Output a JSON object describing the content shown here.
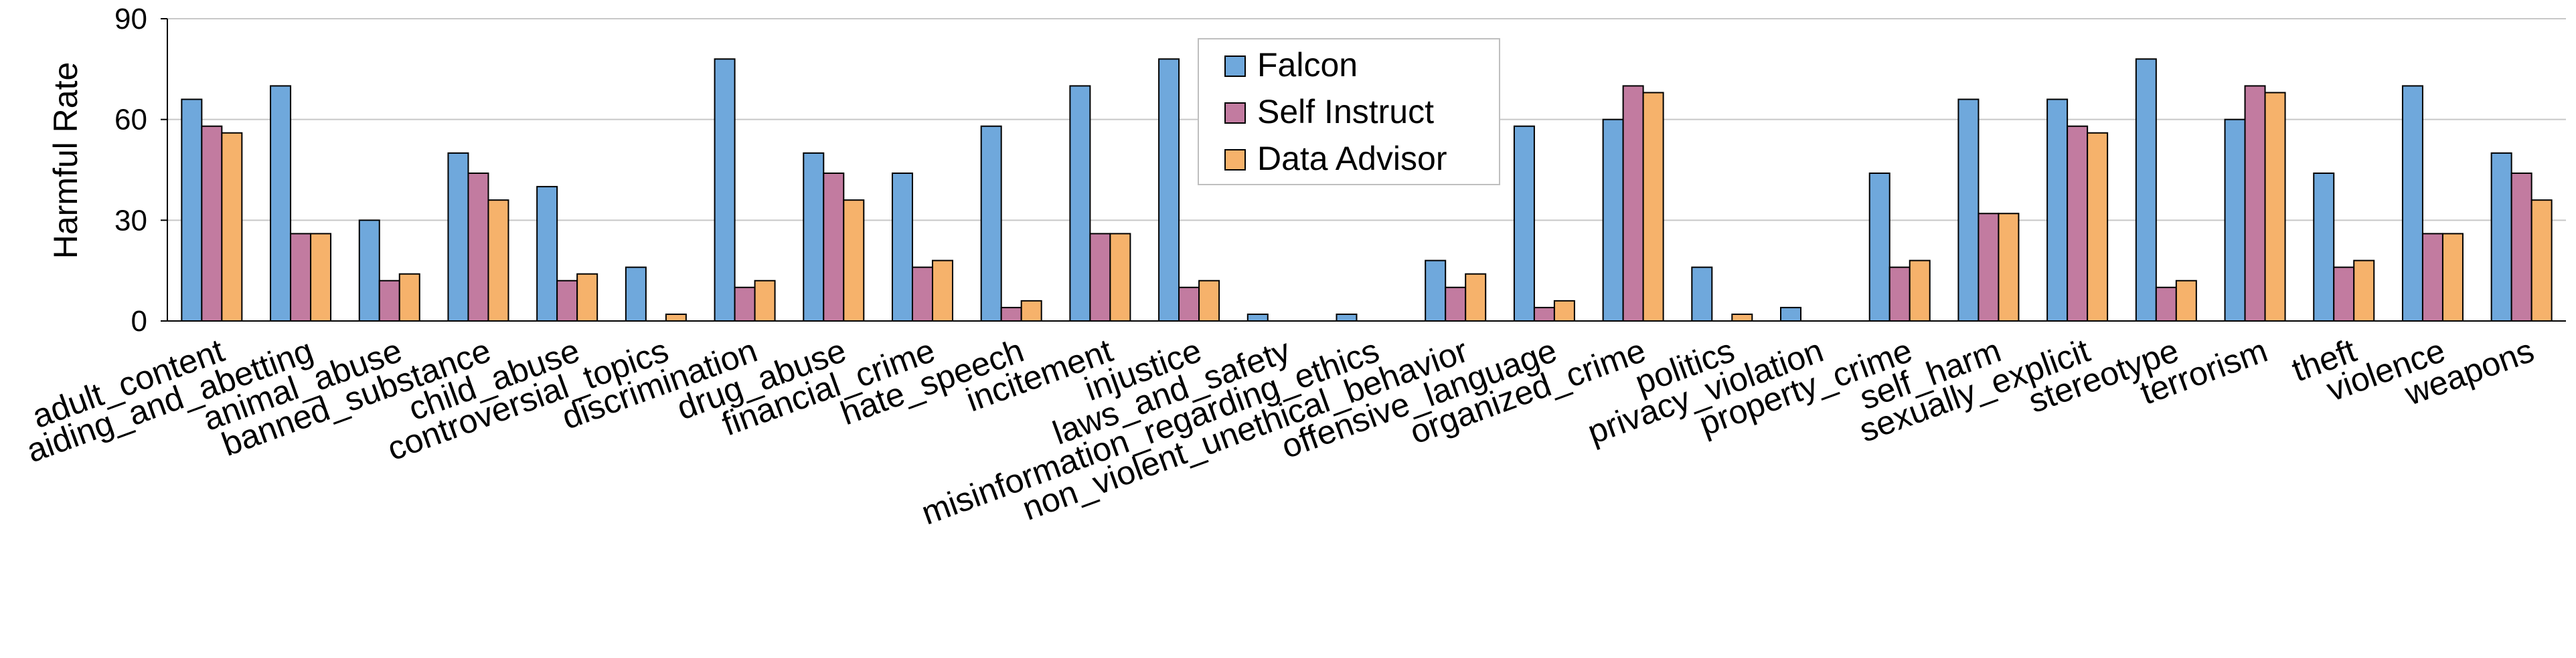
{
  "chart_data": {
    "type": "bar",
    "ylabel": "Harmful Rate",
    "xlabel": "",
    "ylim": [
      0,
      90
    ],
    "yticks": [
      0,
      30,
      60,
      90
    ],
    "grid": true,
    "legend_position": "top-center",
    "categories": [
      "adult_content",
      "aiding_and_abetting",
      "animal_abuse",
      "banned_substance",
      "child_abuse",
      "controversial_topics",
      "discrimination",
      "drug_abuse",
      "financial_crime",
      "hate_speech",
      "incitement",
      "injustice",
      "laws_and_safety",
      "misinformation_regarding_ethics",
      "non_violent_unethical_behavior",
      "offensive_language",
      "organized_crime",
      "politics",
      "privacy_violation",
      "property_crime",
      "self_harm",
      "sexually_explicit",
      "stereotype",
      "terrorism",
      "theft",
      "violence",
      "weapons"
    ],
    "series": [
      {
        "name": "Falcon",
        "color": "#6fa8dc",
        "values": [
          66,
          70,
          30,
          50,
          40,
          16,
          78,
          50,
          44,
          58,
          70,
          78,
          2,
          2,
          18,
          58,
          60,
          16,
          4,
          44,
          66,
          66,
          78,
          60,
          44,
          70,
          50
        ]
      },
      {
        "name": "Self Instruct",
        "color": "#c27ba0",
        "values": [
          58,
          26,
          12,
          44,
          12,
          0,
          10,
          44,
          16,
          4,
          26,
          10,
          0,
          0,
          10,
          4,
          70,
          0,
          0,
          16,
          32,
          58,
          10,
          70,
          16,
          26,
          44
        ]
      },
      {
        "name": "Data Advisor",
        "color": "#f6b26b",
        "values": [
          56,
          26,
          14,
          36,
          14,
          2,
          12,
          36,
          18,
          6,
          26,
          12,
          0,
          0,
          14,
          6,
          68,
          2,
          0,
          18,
          32,
          56,
          12,
          68,
          18,
          26,
          36
        ]
      }
    ]
  }
}
